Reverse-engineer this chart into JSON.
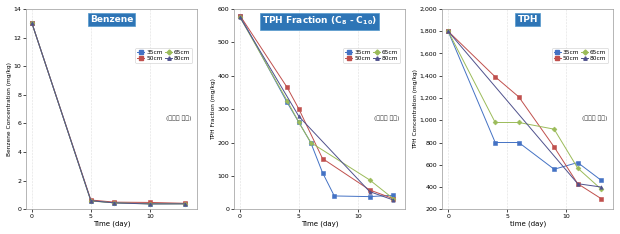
{
  "benzene": {
    "title": "Benzene",
    "xlabel": "Time (day)",
    "ylabel": "Benzene Concentration (mg/kg)",
    "xdata": [
      0,
      5,
      7,
      10,
      13
    ],
    "series": {
      "35cm": [
        13.0,
        0.6,
        0.45,
        0.4,
        0.4
      ],
      "50cm": [
        13.0,
        0.65,
        0.5,
        0.48,
        0.42
      ],
      "65cm": [
        13.0,
        0.58,
        0.45,
        0.38,
        0.38
      ],
      "80cm": [
        13.0,
        0.6,
        0.45,
        0.37,
        0.38
      ]
    },
    "ylim": [
      0,
      14
    ],
    "xlim": [
      -0.5,
      14
    ],
    "yticks": [
      0,
      2,
      4,
      6,
      8,
      10,
      12,
      14
    ],
    "xticks": [
      0,
      5,
      10
    ],
    "xticklabels": [
      "0",
      "5",
      "10"
    ]
  },
  "tph_fraction": {
    "title": "TPH Fraction (C_{8} - C_{10})",
    "xlabel": "Time (day)",
    "ylabel": "TPH Fraction (mg/kg)",
    "xdata": [
      0,
      4,
      5,
      6,
      7,
      8,
      9,
      11,
      13
    ],
    "series": {
      "35cm": [
        580,
        320,
        260,
        200,
        110,
        40,
        null,
        38,
        42
      ],
      "50cm": [
        580,
        365,
        300,
        null,
        152,
        null,
        null,
        58,
        32
      ],
      "65cm": [
        575,
        325,
        260,
        200,
        null,
        null,
        null,
        88,
        32
      ],
      "80cm": [
        575,
        null,
        278,
        null,
        null,
        null,
        null,
        53,
        28
      ]
    },
    "ylim": [
      0,
      600
    ],
    "xlim": [
      -0.5,
      14
    ],
    "yticks": [
      0,
      100,
      200,
      300,
      400,
      500,
      600
    ],
    "xticks": [
      0,
      5,
      10
    ],
    "xticklabels": [
      "0",
      "5",
      "10"
    ]
  },
  "tph": {
    "title": "TPH",
    "xlabel": "time (day)",
    "ylabel": "TPH Concentration (mg/kg)",
    "xdata": [
      0,
      4,
      6,
      8,
      9,
      11,
      13
    ],
    "series": {
      "35cm": [
        1800,
        800,
        800,
        null,
        560,
        620,
        460
      ],
      "50cm": [
        1800,
        1390,
        1210,
        null,
        760,
        430,
        295
      ],
      "65cm": [
        1800,
        980,
        980,
        null,
        920,
        570,
        380
      ],
      "80cm": [
        1800,
        null,
        null,
        null,
        null,
        430,
        400
      ]
    },
    "ylim": [
      200,
      2000
    ],
    "xlim": [
      -0.5,
      14
    ],
    "yticks": [
      200,
      400,
      600,
      800,
      1000,
      1200,
      1400,
      1600,
      1800,
      2000
    ],
    "xticks": [
      0,
      5,
      10
    ],
    "xticklabels": [
      "0",
      "5",
      "10"
    ]
  },
  "legend_labels": [
    "35cm",
    "50cm",
    "65cm",
    "80cm"
  ],
  "legend_note": "(주입정 기준)",
  "line_colors": [
    "#4472c4",
    "#c0504d",
    "#9bbb59",
    "#4f518c"
  ],
  "markers": [
    "s",
    "s",
    "D",
    "^"
  ],
  "title_box_color": "#2e75b6",
  "title_text_color": "#ffffff",
  "background_color": "#ffffff",
  "axes_facecolor": "#ffffff"
}
